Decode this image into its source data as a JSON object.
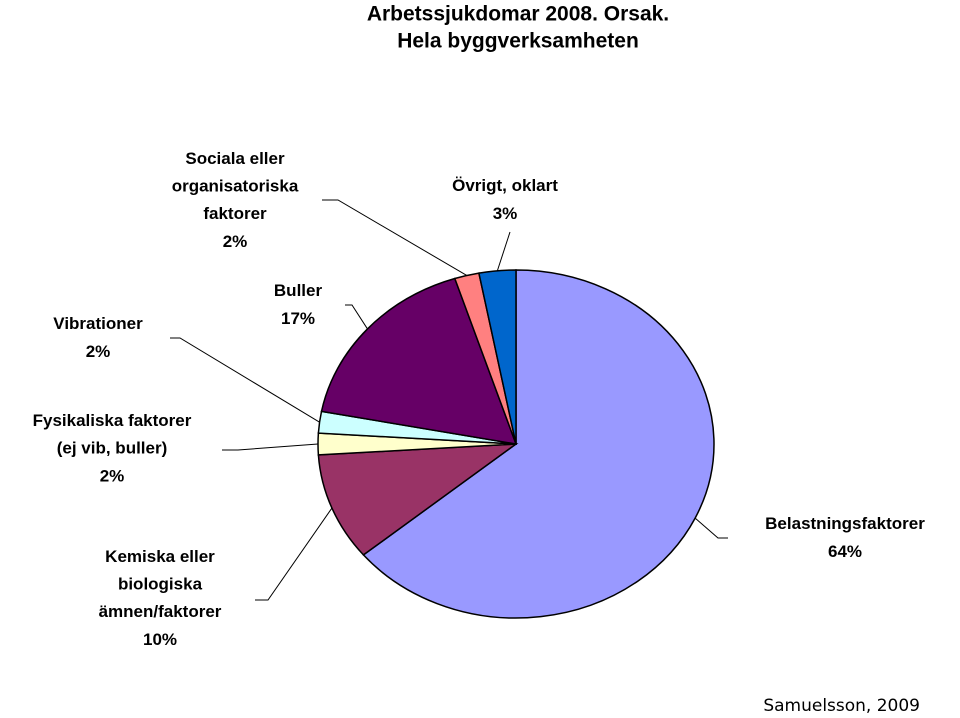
{
  "chart_data": {
    "type": "pie",
    "title": "Arbetssjukdomar 2008. Orsak.",
    "subtitle": "Hela byggverksamheten",
    "categories": [
      "Belastningsfaktorer",
      "Kemiska eller\nbiologiska\nämnen/faktorer",
      "Fysikaliska faktorer\n(ej vib, buller)",
      "Vibrationer",
      "Buller",
      "Sociala eller\norganisatoriska\nfaktorer",
      "Övrigt, oklart"
    ],
    "values": [
      64,
      10,
      2,
      2,
      17,
      2,
      3
    ],
    "value_labels": [
      "64%",
      "10%",
      "2%",
      "2%",
      "17%",
      "2%",
      "3%"
    ],
    "colors": [
      "#9999ff",
      "#993366",
      "#ffffcc",
      "#ccffff",
      "#660066",
      "#ff8080",
      "#0066cc"
    ],
    "source": "Samuelsson, 2009"
  }
}
